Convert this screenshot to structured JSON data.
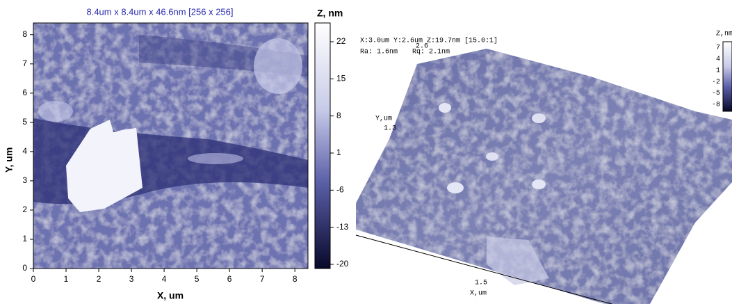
{
  "left_panel": {
    "title": "8.4um x 8.4um x 46.6nm [256 x 256]",
    "x_label": "X, um",
    "y_label": "Y, um",
    "x_ticks": [
      0,
      1,
      2,
      3,
      4,
      5,
      6,
      7,
      8
    ],
    "y_ticks": [
      0,
      1,
      2,
      3,
      4,
      5,
      6,
      7,
      8
    ],
    "colorbar_label": "Z, nm",
    "colorbar_ticks": [
      22,
      15,
      8,
      1,
      -6,
      -13,
      -20
    ]
  },
  "right_panel": {
    "info_xyz": "X:3.0um  Y:2.6um  Z:19.7nm [15.0:1]",
    "info_ra": "Ra: 1.6nm",
    "info_rq": "Rq: 2.1nm",
    "top_value": "2.6",
    "y_axis_label": "Y,um",
    "y_axis_value": "1.3",
    "x_axis_value": "1.5",
    "x_axis_label": "X,um",
    "colorbar_label": "Z,nm",
    "colorbar_ticks": [
      7,
      4,
      1,
      -2,
      -5,
      -8
    ]
  }
}
